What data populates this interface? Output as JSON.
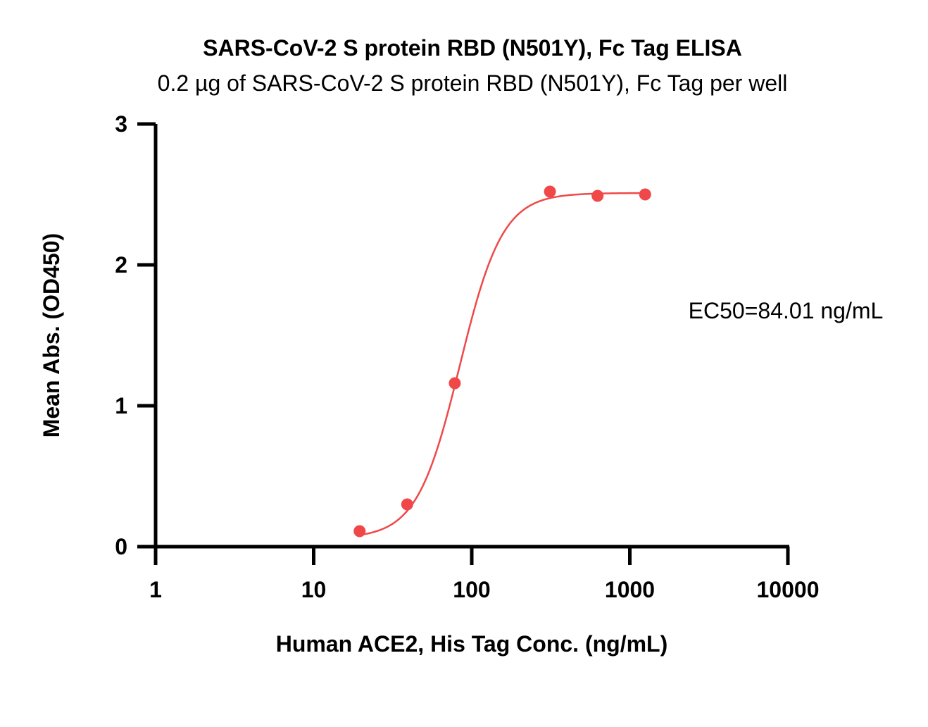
{
  "chart_data": {
    "type": "scatter",
    "title": "SARS-CoV-2 S protein RBD (N501Y), Fc Tag ELISA",
    "subtitle": "0.2 µg of SARS-CoV-2 S protein RBD (N501Y), Fc Tag per well",
    "xlabel": "Human ACE2, His Tag Conc. (ng/mL)",
    "ylabel": "Mean Abs. (OD450)",
    "x_scale": "log",
    "xlim": [
      1,
      10000
    ],
    "ylim": [
      0,
      3
    ],
    "x_ticks": [
      1,
      10,
      100,
      1000,
      10000
    ],
    "x_tick_labels": [
      "1",
      "10",
      "100",
      "1000",
      "10000"
    ],
    "y_ticks": [
      0,
      1,
      2,
      3
    ],
    "y_tick_labels": [
      "0",
      "1",
      "2",
      "3"
    ],
    "grid": false,
    "legend": "none",
    "series": [
      {
        "color": "#f04848",
        "x": [
          19.53,
          39.06,
          78.13,
          312.5,
          625,
          1250
        ],
        "y": [
          0.11,
          0.3,
          1.16,
          2.52,
          2.49,
          2.5
        ]
      }
    ],
    "fit_curve": {
      "model": "4PL",
      "bottom": 0.06,
      "top": 2.51,
      "ec50": 84.01,
      "hill": 3.2,
      "x_range": [
        19.53,
        1250
      ],
      "color": "#f04848"
    },
    "annotations": [
      {
        "text": "EC50=84.01 ng/mL"
      }
    ]
  }
}
